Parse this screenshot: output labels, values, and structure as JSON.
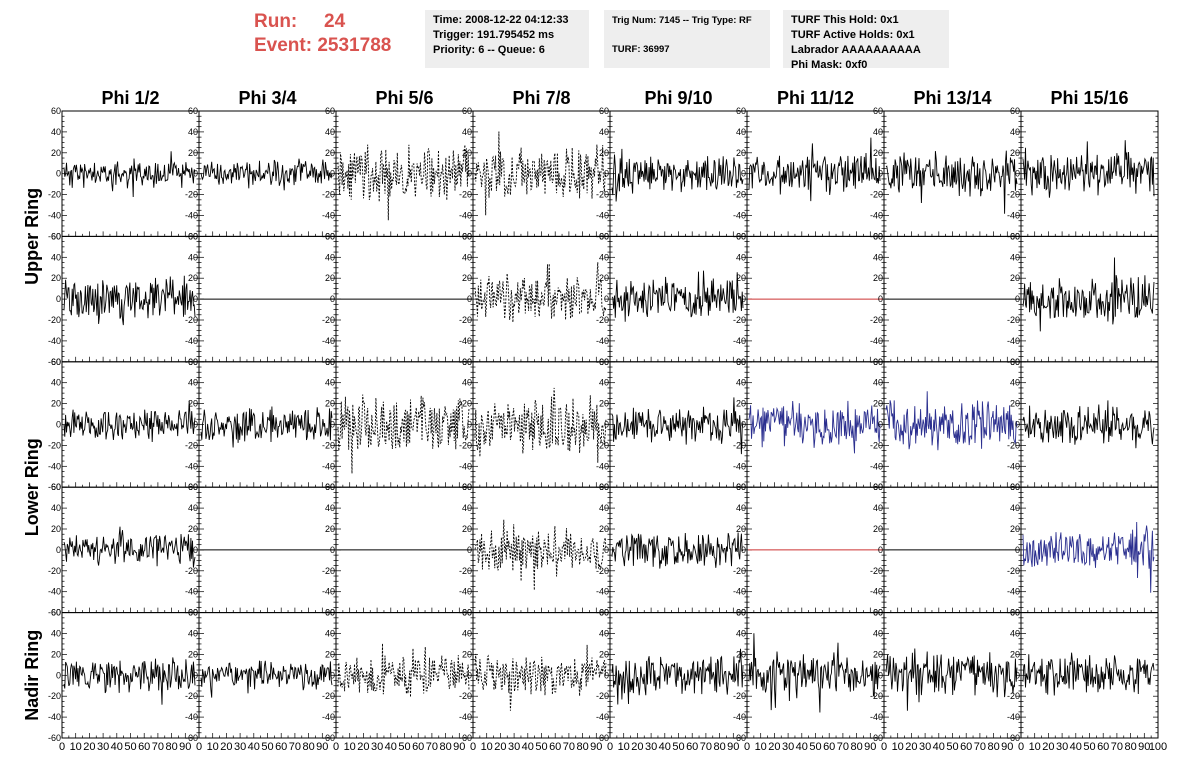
{
  "header": {
    "run_label": "Run:",
    "run_value": "24",
    "event_label": "Event:",
    "event_value": "2531788",
    "time": "Time: 2008-12-22 04:12:33",
    "trigger": "Trigger: 191.795452 ms",
    "priority": "Priority: 6 -- Queue: 6",
    "trig_num": "Trig Num: 7145 -- Trig Type: RF",
    "turf": "TURF: 36997",
    "turf_this_hold": "TURF This Hold: 0x1",
    "turf_active_holds": "TURF Active Holds: 0x1",
    "labrador": "Labrador AAAAAAAAAA",
    "phi_mask": "Phi Mask: 0xf0"
  },
  "colors": {
    "header_accent": "#d9534f",
    "panel_bg": "#eeeeee",
    "trace_normal": "#000000",
    "trace_highlight": "#2b2f8f",
    "trace_disabled": "#cc3333"
  },
  "chart_data": {
    "type": "line",
    "columns": [
      "Phi 1/2",
      "Phi 3/4",
      "Phi 5/6",
      "Phi 7/8",
      "Phi 9/10",
      "Phi 11/12",
      "Phi 13/14",
      "Phi 15/16"
    ],
    "rows": [
      {
        "label": "Upper Ring",
        "rows_spanned": 2
      },
      {
        "label": "Lower Ring",
        "rows_spanned": 2
      },
      {
        "label": "Nadir Ring",
        "rows_spanned": 1
      }
    ],
    "ylim": [
      -60,
      60
    ],
    "yticks": [
      -60,
      -40,
      -20,
      0,
      20,
      40,
      60
    ],
    "xlim": [
      0,
      100
    ],
    "xticks": [
      0,
      10,
      20,
      30,
      40,
      50,
      60,
      70,
      80,
      90,
      100
    ],
    "cells": [
      [
        {
          "style": "solid",
          "color": "black",
          "amp": 10,
          "seed": 11
        },
        {
          "style": "solid",
          "color": "black",
          "amp": 10,
          "seed": 12
        },
        {
          "style": "dashed",
          "color": "black",
          "amp": 20,
          "seed": 13
        },
        {
          "style": "dashed",
          "color": "black",
          "amp": 18,
          "seed": 14
        },
        {
          "style": "solid",
          "color": "black",
          "amp": 14,
          "seed": 15
        },
        {
          "style": "solid",
          "color": "black",
          "amp": 14,
          "seed": 16
        },
        {
          "style": "solid",
          "color": "black",
          "amp": 16,
          "seed": 17
        },
        {
          "style": "solid",
          "color": "black",
          "amp": 16,
          "seed": 18
        }
      ],
      [
        {
          "style": "solid",
          "color": "black",
          "amp": 15,
          "seed": 21
        },
        {
          "style": "flat",
          "color": "black",
          "amp": 0,
          "seed": 22
        },
        {
          "style": "flat",
          "color": "black",
          "amp": 0,
          "seed": 23
        },
        {
          "style": "dashed",
          "color": "black",
          "amp": 16,
          "seed": 24
        },
        {
          "style": "solid",
          "color": "black",
          "amp": 14,
          "seed": 25
        },
        {
          "style": "flat",
          "color": "red",
          "amp": 0,
          "seed": 26
        },
        {
          "style": "flat",
          "color": "black",
          "amp": 0,
          "seed": 27
        },
        {
          "style": "solid",
          "color": "black",
          "amp": 16,
          "seed": 28
        }
      ],
      [
        {
          "style": "solid",
          "color": "black",
          "amp": 10,
          "seed": 31
        },
        {
          "style": "solid",
          "color": "black",
          "amp": 12,
          "seed": 32
        },
        {
          "style": "dashed",
          "color": "black",
          "amp": 20,
          "seed": 33
        },
        {
          "style": "dashed",
          "color": "black",
          "amp": 20,
          "seed": 34
        },
        {
          "style": "solid",
          "color": "black",
          "amp": 12,
          "seed": 35
        },
        {
          "style": "solid",
          "color": "blue",
          "amp": 16,
          "seed": 36
        },
        {
          "style": "solid",
          "color": "blue",
          "amp": 18,
          "seed": 37
        },
        {
          "style": "solid",
          "color": "black",
          "amp": 14,
          "seed": 38
        }
      ],
      [
        {
          "style": "solid",
          "color": "black",
          "amp": 12,
          "seed": 41
        },
        {
          "style": "flat",
          "color": "black",
          "amp": 0,
          "seed": 42
        },
        {
          "style": "flat",
          "color": "black",
          "amp": 0,
          "seed": 43
        },
        {
          "style": "dashed",
          "color": "black",
          "amp": 16,
          "seed": 44
        },
        {
          "style": "solid",
          "color": "black",
          "amp": 13,
          "seed": 45
        },
        {
          "style": "flat",
          "color": "red",
          "amp": 0,
          "seed": 46
        },
        {
          "style": "flat",
          "color": "black",
          "amp": 0,
          "seed": 47
        },
        {
          "style": "solid",
          "color": "blue",
          "amp": 16,
          "seed": 48
        }
      ],
      [
        {
          "style": "solid",
          "color": "black",
          "amp": 12,
          "seed": 51
        },
        {
          "style": "solid",
          "color": "black",
          "amp": 10,
          "seed": 52
        },
        {
          "style": "dashed",
          "color": "black",
          "amp": 14,
          "seed": 53
        },
        {
          "style": "dashed",
          "color": "black",
          "amp": 14,
          "seed": 54
        },
        {
          "style": "solid",
          "color": "black",
          "amp": 14,
          "seed": 55
        },
        {
          "style": "solid",
          "color": "black",
          "amp": 16,
          "seed": 56
        },
        {
          "style": "solid",
          "color": "black",
          "amp": 16,
          "seed": 57
        },
        {
          "style": "solid",
          "color": "black",
          "amp": 14,
          "seed": 58
        }
      ]
    ]
  }
}
